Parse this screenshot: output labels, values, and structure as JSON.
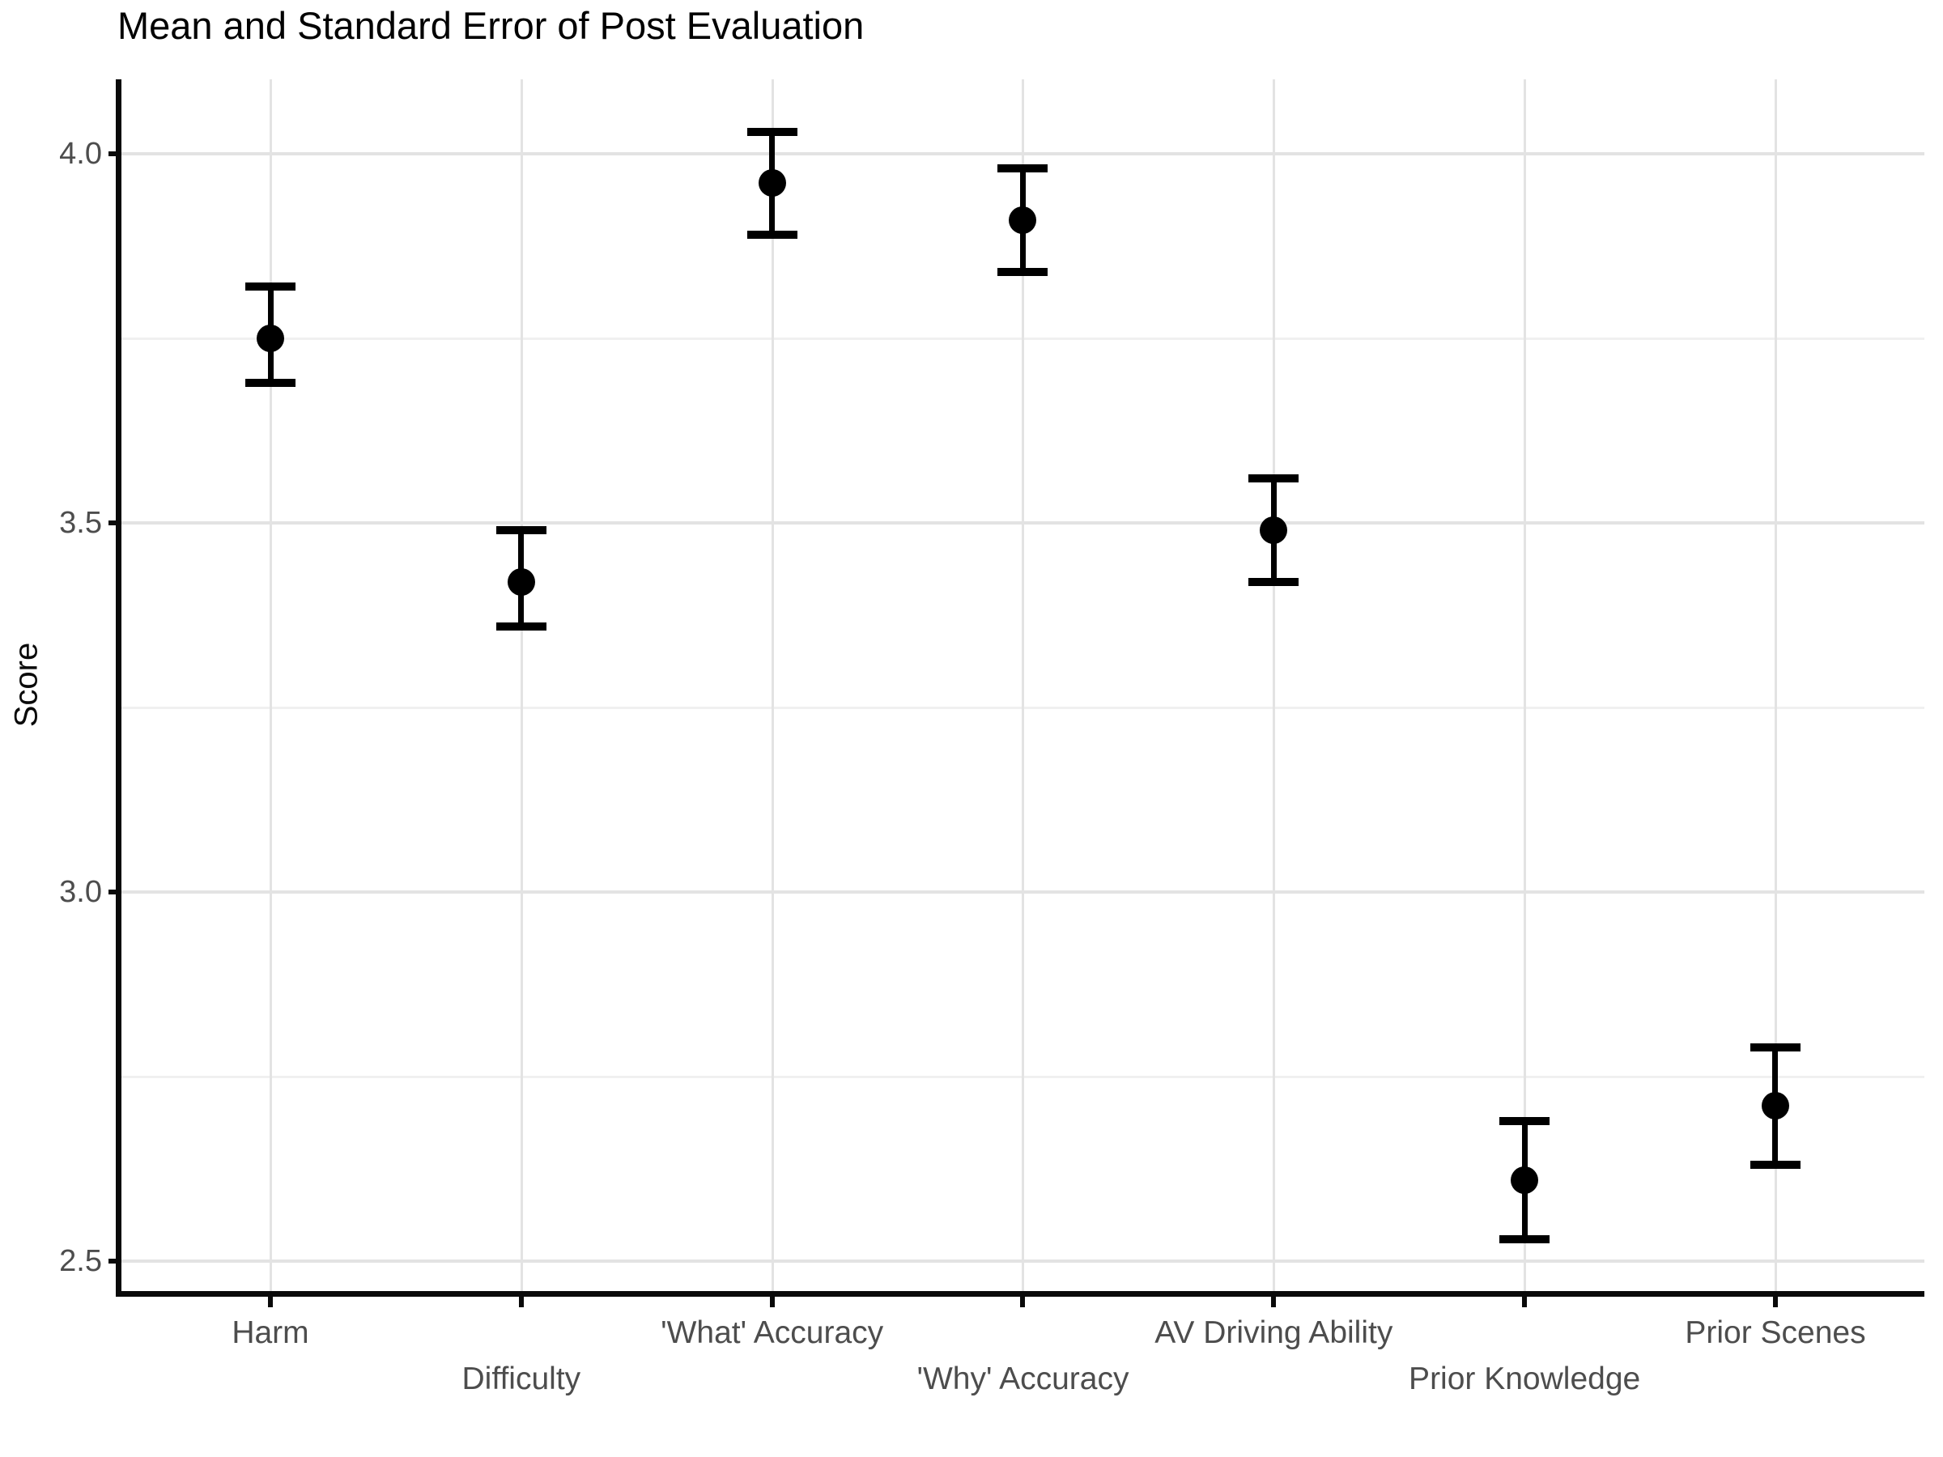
{
  "chart_data": {
    "type": "scatter",
    "subtype": "point-with-errorbar",
    "title": "Mean and Standard Error of Post Evaluation",
    "xlabel": "",
    "ylabel": "Score",
    "categories": [
      "Harm",
      "Difficulty",
      "'What' Accuracy",
      "'Why' Accuracy",
      "AV Driving Ability",
      "Prior Knowledge",
      "Prior Scenes"
    ],
    "series": [
      {
        "name": "Mean",
        "means": [
          3.75,
          3.42,
          3.96,
          3.91,
          3.49,
          2.61,
          2.71
        ],
        "se": [
          0.066,
          0.063,
          0.071,
          0.07,
          0.067,
          0.078,
          0.078
        ],
        "error_low": [
          3.69,
          3.36,
          3.89,
          3.84,
          3.42,
          2.53,
          2.63
        ],
        "error_high": [
          3.82,
          3.49,
          4.03,
          3.98,
          3.56,
          2.69,
          2.79
        ]
      }
    ],
    "y_ticks": [
      4.0,
      3.5,
      3.0,
      2.5
    ],
    "y_tick_labels": [
      "4.0",
      "3.5",
      "3.0",
      "2.5"
    ],
    "y_minor_gridlines": [
      3.75,
      3.25,
      2.75
    ],
    "ylim": [
      2.46,
      4.1
    ],
    "grid": true,
    "legend_position": "none",
    "point_color": "#000000",
    "errorbar_color": "#000000",
    "axis_color": "#0a0a0a",
    "major_grid_color": "#e3e3e3",
    "minor_grid_color": "#f0f0f0",
    "tick_label_color": "#4d4d4d",
    "title_color": "#000000",
    "background_color": "#ffffff"
  }
}
